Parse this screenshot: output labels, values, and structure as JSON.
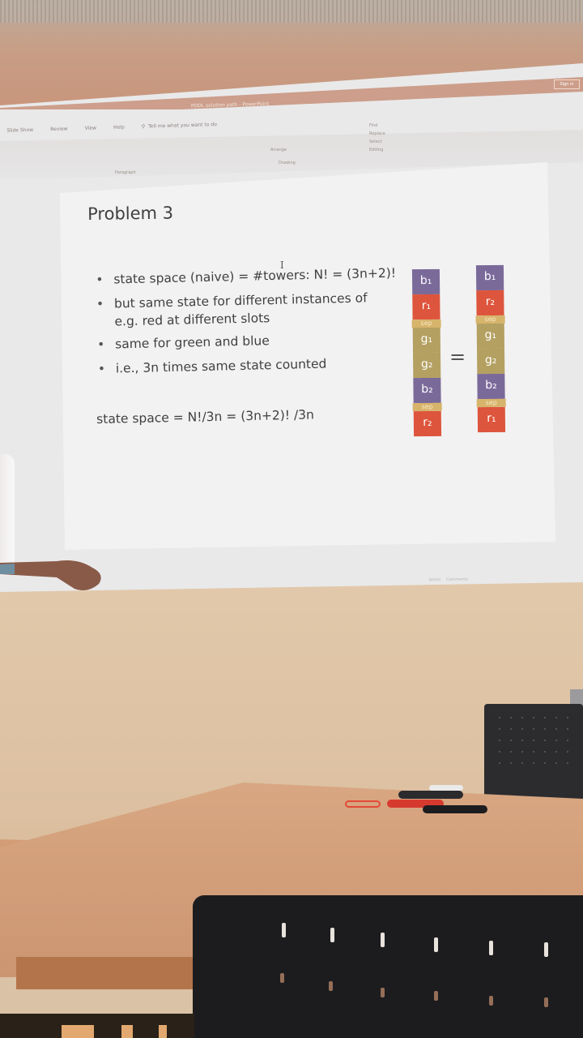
{
  "ppt": {
    "window_title": "PDDL solution path - PowerPoint",
    "sign_in": "Sign in",
    "ribbon_tabs": [
      "Slide Show",
      "Review",
      "View",
      "Help"
    ],
    "tell_me": "Tell me what you want to do",
    "groups": {
      "paragraph": "Paragraph",
      "drawing": "Drawing",
      "editing": "Editing",
      "arrange": "Arrange"
    },
    "editing_cmds": [
      "Find",
      "Replace",
      "Select"
    ],
    "status": {
      "notes": "Notes",
      "comments": "Comments"
    }
  },
  "slide": {
    "title": "Problem 3",
    "bullets": [
      {
        "line1": "state space (naive) = #towers: N! = (3n+2)!",
        "line2": ""
      },
      {
        "line1": "but same state for different instances of",
        "line2": "e.g. red at different slots"
      },
      {
        "line1": "same for green and blue",
        "line2": ""
      },
      {
        "line1": "i.e., 3n times same state counted",
        "line2": ""
      }
    ],
    "formula": "state space = N!/3n = (3n+2)! /3n",
    "equals": "=",
    "tower_left": [
      {
        "kind": "b",
        "label": "b₁"
      },
      {
        "kind": "r",
        "label": "r₁"
      },
      {
        "kind": "sep",
        "label": "sep"
      },
      {
        "kind": "g",
        "label": "g₁"
      },
      {
        "kind": "g",
        "label": "g₂"
      },
      {
        "kind": "b",
        "label": "b₂"
      },
      {
        "kind": "sep",
        "label": "sep"
      },
      {
        "kind": "r",
        "label": "r₂"
      }
    ],
    "tower_right": [
      {
        "kind": "b",
        "label": "b₁"
      },
      {
        "kind": "r",
        "label": "r₂"
      },
      {
        "kind": "sep",
        "label": "sep"
      },
      {
        "kind": "g",
        "label": "g₁"
      },
      {
        "kind": "g",
        "label": "g₂"
      },
      {
        "kind": "b",
        "label": "b₂"
      },
      {
        "kind": "sep",
        "label": "sep"
      },
      {
        "kind": "r",
        "label": "r₁"
      }
    ]
  }
}
